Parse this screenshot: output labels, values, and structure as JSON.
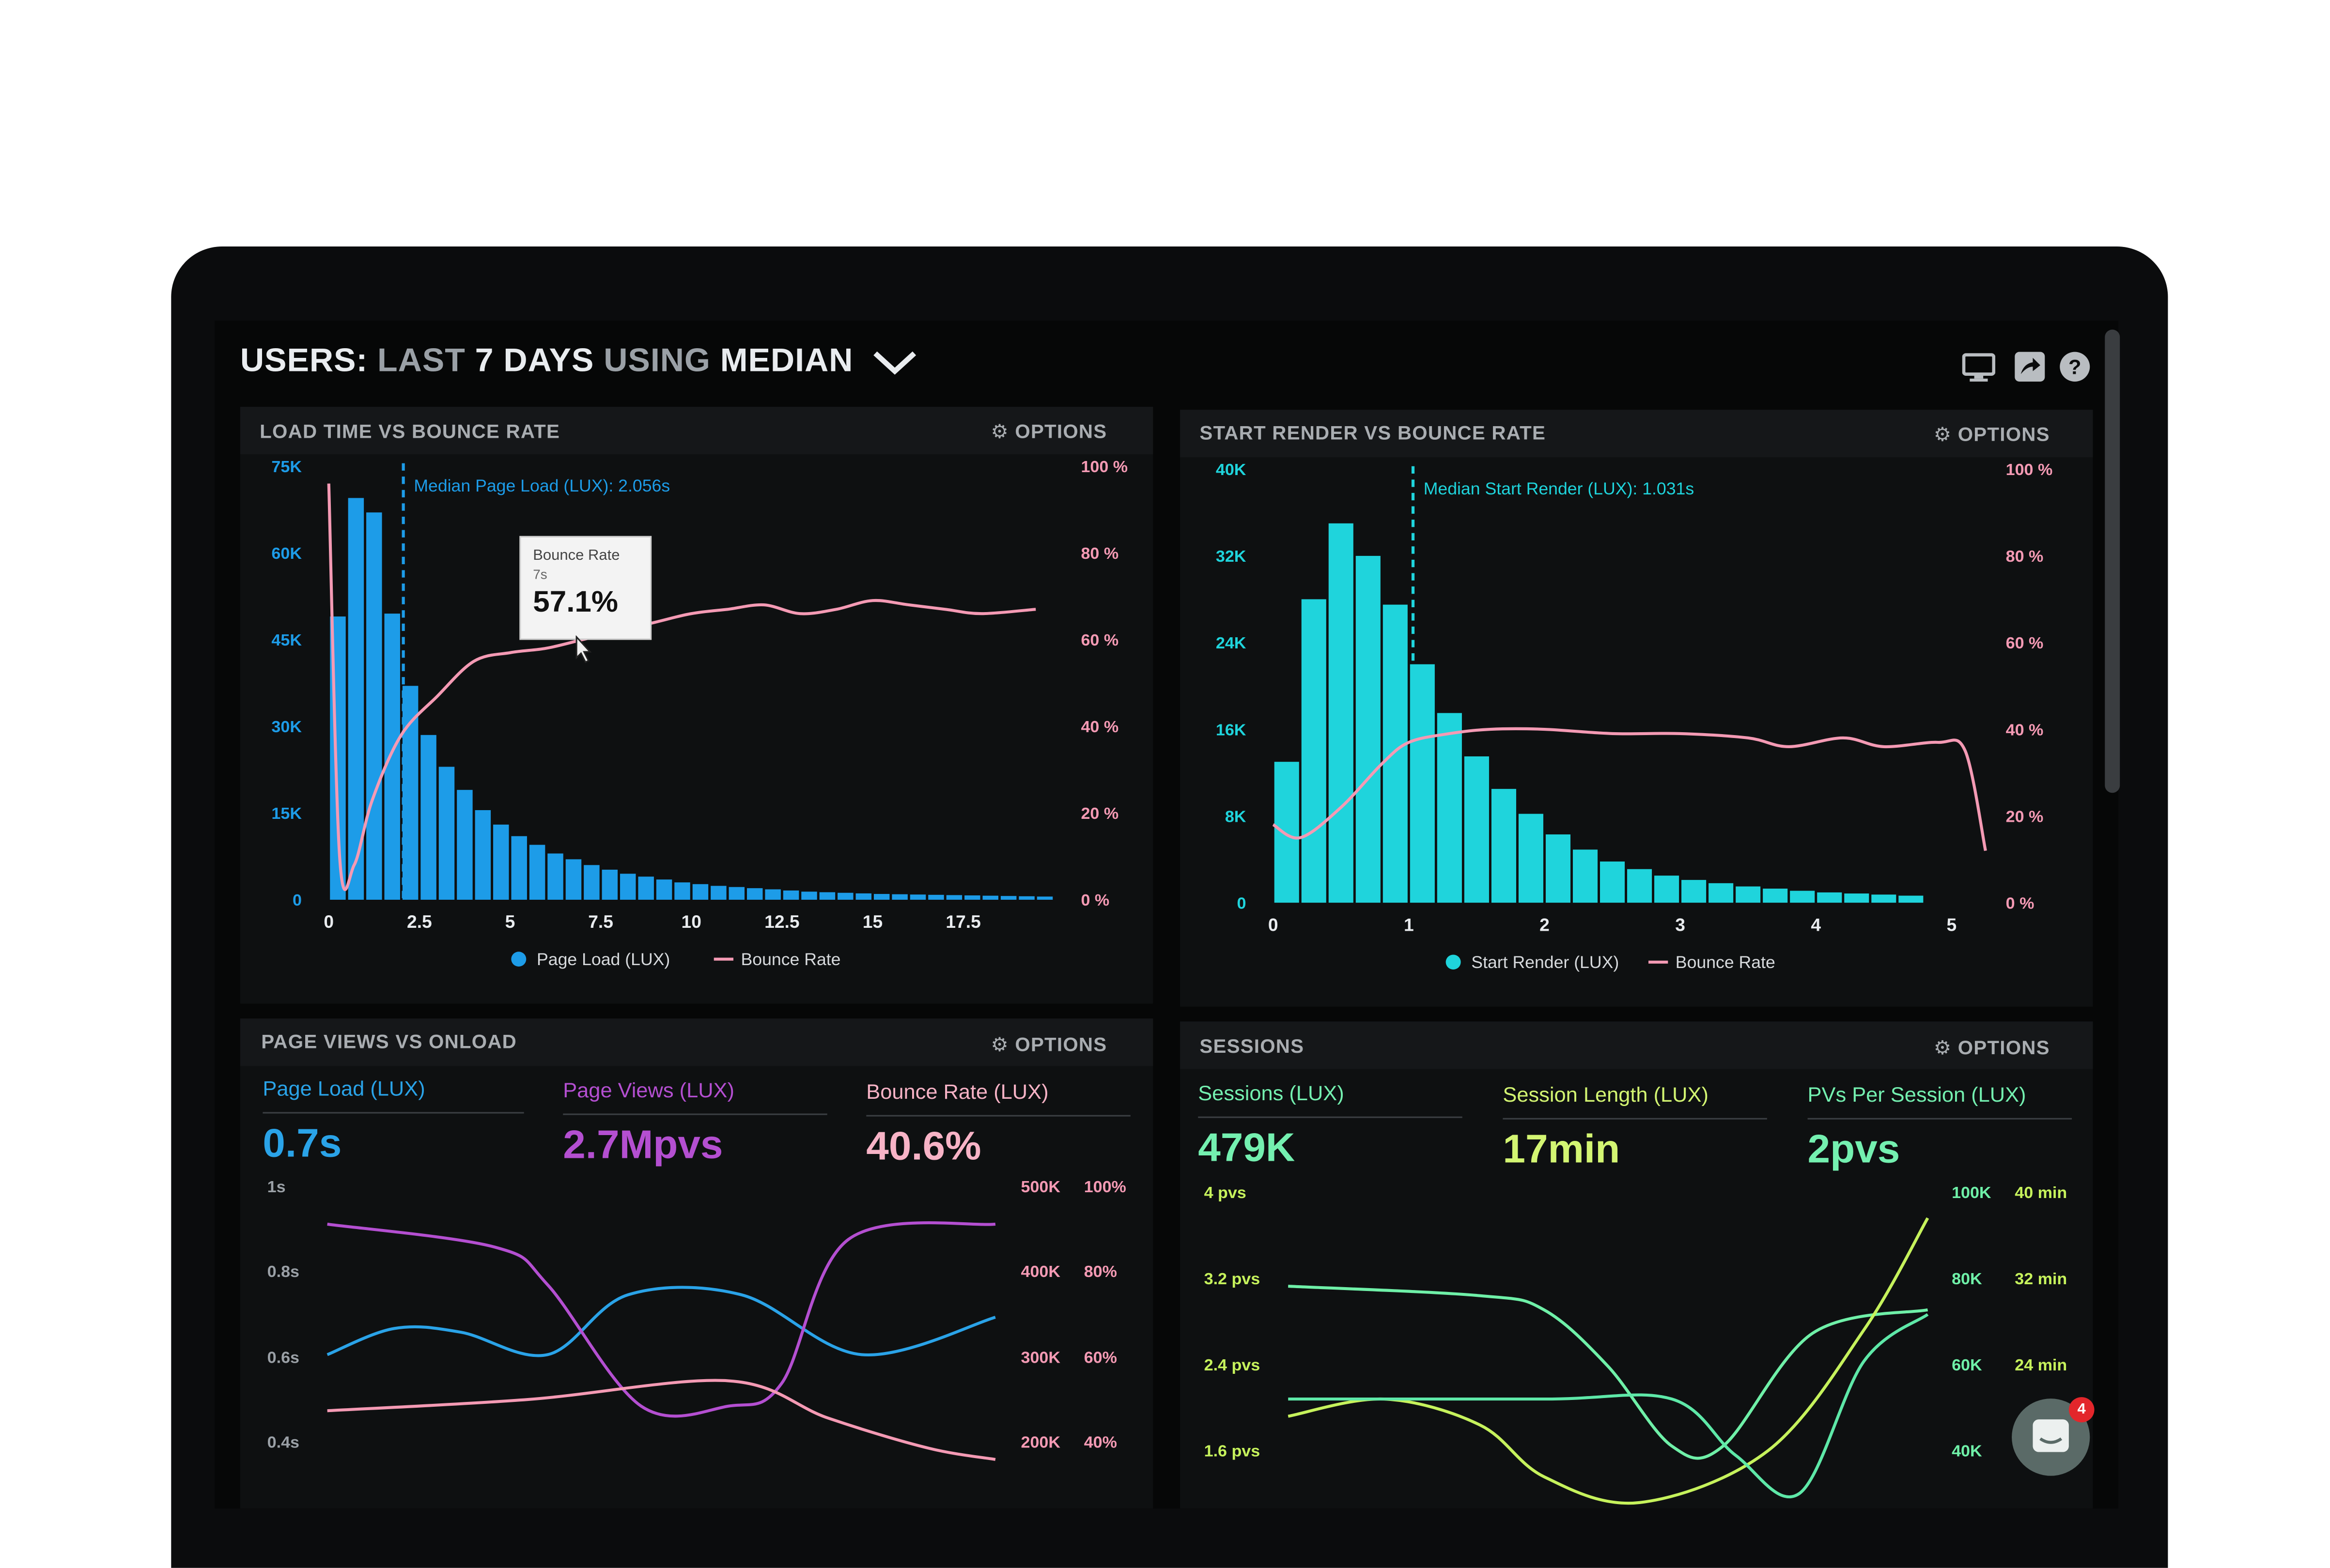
{
  "header": {
    "title_parts": [
      "USERS:",
      "LAST",
      "7 DAYS",
      "USING",
      "MEDIAN"
    ],
    "icons": [
      "monitor-icon",
      "share-icon",
      "help-icon"
    ]
  },
  "colors": {
    "blue": "#1d9ce8",
    "cyan": "#1fd4dc",
    "pink": "#f49ab4",
    "purple": "#b44fd1",
    "green": "#6ff0a8",
    "lime": "#c6f25c",
    "muted": "#a9adb1"
  },
  "panels": {
    "load_time": {
      "title": "LOAD TIME VS BOUNCE RATE",
      "options": "OPTIONS"
    },
    "start_render": {
      "title": "START RENDER VS BOUNCE RATE",
      "options": "OPTIONS"
    },
    "page_views": {
      "title": "PAGE VIEWS VS ONLOAD",
      "options": "OPTIONS"
    },
    "sessions": {
      "title": "SESSIONS",
      "options": "OPTIONS"
    }
  },
  "tooltip": {
    "label": "Bounce Rate",
    "sub": "7s",
    "value": "57.1%"
  },
  "page_views_stats": [
    {
      "label": "Page Load (LUX)",
      "value": "0.7s",
      "color": "#2aa3e8"
    },
    {
      "label": "Page Views (LUX)",
      "value": "2.7Mpvs",
      "color": "#b44fd1"
    },
    {
      "label": "Bounce Rate (LUX)",
      "value": "40.6%",
      "color": "#f7b3c6"
    }
  ],
  "sessions_stats": [
    {
      "label": "Sessions (LUX)",
      "value": "479K",
      "color": "#74f0b0"
    },
    {
      "label": "Session Length (LUX)",
      "value": "17min",
      "color": "#d3f572"
    },
    {
      "label": "PVs Per Session (LUX)",
      "value": "2pvs",
      "color": "#74f0b0"
    }
  ],
  "chat": {
    "badge": "4"
  },
  "chart_data": [
    {
      "type": "bar",
      "name": "load-time-vs-bounce-rate",
      "x_ticks": [
        "0",
        "2.5",
        "5",
        "7.5",
        "10",
        "12.5",
        "15",
        "17.5"
      ],
      "xlim": [
        0,
        20
      ],
      "y_left_ticks": [
        "0",
        "15K",
        "30K",
        "45K",
        "60K",
        "75K"
      ],
      "ylim_left": [
        0,
        75000
      ],
      "y_right_ticks": [
        "0 %",
        "20 %",
        "40 %",
        "60 %",
        "80 %",
        "100 %"
      ],
      "ylim_right": [
        0,
        100
      ],
      "median_label": "Median Page Load (LUX): 2.056s",
      "median_x": 2.056,
      "bin_width": 0.5,
      "series": [
        {
          "name": "Page Load (LUX)",
          "kind": "bar",
          "color": "#1d9ce8",
          "values": [
            49000,
            69500,
            67000,
            49500,
            37000,
            28500,
            23000,
            19000,
            15500,
            13000,
            11000,
            9500,
            8000,
            7000,
            6000,
            5200,
            4500,
            4000,
            3500,
            3000,
            2700,
            2400,
            2200,
            2000,
            1800,
            1600,
            1400,
            1300,
            1200,
            1100,
            1000,
            950,
            900,
            850,
            800,
            750,
            700,
            650,
            600,
            550
          ]
        },
        {
          "name": "Bounce Rate",
          "kind": "line",
          "color": "#f49ab4",
          "points": [
            [
              0,
              96
            ],
            [
              0.3,
              10
            ],
            [
              0.7,
              8
            ],
            [
              1.2,
              23
            ],
            [
              2,
              38
            ],
            [
              3,
              47
            ],
            [
              4,
              55
            ],
            [
              5,
              57
            ],
            [
              6,
              58
            ],
            [
              7,
              60
            ],
            [
              8,
              62
            ],
            [
              9,
              64
            ],
            [
              10,
              66
            ],
            [
              11,
              67
            ],
            [
              12,
              68
            ],
            [
              13,
              66
            ],
            [
              14,
              67
            ],
            [
              15,
              69
            ],
            [
              16,
              68
            ],
            [
              17,
              67
            ],
            [
              18,
              66
            ],
            [
              19.5,
              67
            ]
          ]
        }
      ]
    },
    {
      "type": "bar",
      "name": "start-render-vs-bounce-rate",
      "x_ticks": [
        "0",
        "1",
        "2",
        "3",
        "4",
        "5"
      ],
      "xlim": [
        0,
        5.2
      ],
      "y_left_ticks": [
        "0",
        "8K",
        "16K",
        "24K",
        "32K",
        "40K"
      ],
      "ylim_left": [
        0,
        40000
      ],
      "y_right_ticks": [
        "0 %",
        "20 %",
        "40 %",
        "60 %",
        "80 %",
        "100 %"
      ],
      "ylim_right": [
        0,
        100
      ],
      "median_label": "Median Start Render (LUX): 1.031s",
      "median_x": 1.031,
      "bin_width": 0.2,
      "series": [
        {
          "name": "Start Render (LUX)",
          "kind": "bar",
          "color": "#1fd4dc",
          "values": [
            13000,
            28000,
            35000,
            32000,
            27500,
            22000,
            17500,
            13500,
            10500,
            8200,
            6300,
            4900,
            3800,
            3100,
            2500,
            2100,
            1800,
            1500,
            1300,
            1100,
            950,
            850,
            750,
            650
          ]
        },
        {
          "name": "Bounce Rate",
          "kind": "line",
          "color": "#f49ab4",
          "points": [
            [
              0,
              18
            ],
            [
              0.2,
              15
            ],
            [
              0.5,
              22
            ],
            [
              0.8,
              32
            ],
            [
              1.0,
              37
            ],
            [
              1.3,
              39
            ],
            [
              1.6,
              40
            ],
            [
              2.0,
              40
            ],
            [
              2.5,
              39
            ],
            [
              3.0,
              39
            ],
            [
              3.5,
              38
            ],
            [
              3.8,
              36
            ],
            [
              4.2,
              38
            ],
            [
              4.5,
              36
            ],
            [
              4.9,
              37
            ],
            [
              5.1,
              35
            ],
            [
              5.25,
              12
            ]
          ]
        }
      ]
    },
    {
      "type": "line",
      "name": "page-views-vs-onload",
      "y_left_ticks": [
        "0.4s",
        "0.6s",
        "0.8s",
        "1s"
      ],
      "y_right_ticks_a": [
        "200K",
        "300K",
        "400K",
        "500K"
      ],
      "y_right_ticks_b": [
        "40%",
        "60%",
        "80%",
        "100%"
      ],
      "series": [
        {
          "name": "Page Load (LUX)",
          "color": "#2aa3e8",
          "points": [
            [
              0,
              0.6
            ],
            [
              0.1,
              0.67
            ],
            [
              0.2,
              0.66
            ],
            [
              0.33,
              0.6
            ],
            [
              0.45,
              0.76
            ],
            [
              0.62,
              0.76
            ],
            [
              0.8,
              0.6
            ],
            [
              1,
              0.7
            ]
          ]
        },
        {
          "name": "Page Views (LUX)",
          "color": "#b44fd1",
          "points": [
            [
              0,
              470000
            ],
            [
              0.25,
              440000
            ],
            [
              0.33,
              390000
            ],
            [
              0.47,
              230000
            ],
            [
              0.6,
              230000
            ],
            [
              0.68,
              260000
            ],
            [
              0.78,
              450000
            ],
            [
              1,
              470000
            ]
          ]
        },
        {
          "name": "Bounce Rate (LUX)",
          "color": "#f49ab4",
          "points": [
            [
              0,
              0.4
            ],
            [
              0.3,
              0.43
            ],
            [
              0.6,
              0.48
            ],
            [
              0.75,
              0.38
            ],
            [
              0.9,
              0.3
            ],
            [
              1,
              0.27
            ]
          ]
        }
      ]
    },
    {
      "type": "line",
      "name": "sessions",
      "y_left_ticks": [
        "1.6 pvs",
        "2.4 pvs",
        "3.2 pvs",
        "4 pvs"
      ],
      "y_right_ticks_a": [
        "40K",
        "60K",
        "80K",
        "100K"
      ],
      "y_right_ticks_b": [
        "24 min",
        "32 min",
        "40 min"
      ],
      "series": [
        {
          "name": "Sessions (LUX)",
          "color": "#6ff0a8",
          "points": [
            [
              0,
              3.2
            ],
            [
              0.3,
              3.1
            ],
            [
              0.4,
              2.95
            ],
            [
              0.5,
              2.35
            ],
            [
              0.6,
              1.5
            ],
            [
              0.68,
              1.5
            ],
            [
              0.82,
              2.7
            ],
            [
              1,
              2.95
            ]
          ]
        },
        {
          "name": "Session Length (LUX)",
          "color": "#c6f25c",
          "points": [
            [
              0,
              1.6
            ],
            [
              0.15,
              1.8
            ],
            [
              0.3,
              1.5
            ],
            [
              0.4,
              0.9
            ],
            [
              0.55,
              0.6
            ],
            [
              0.75,
              1.2
            ],
            [
              0.9,
              2.6
            ],
            [
              1,
              3.9
            ]
          ]
        },
        {
          "name": "PVs Per Session (LUX)",
          "color": "#5ee8a8",
          "points": [
            [
              0,
              2.0
            ],
            [
              0.4,
              2.0
            ],
            [
              0.6,
              2.0
            ],
            [
              0.7,
              1.4
            ],
            [
              0.8,
              1.0
            ],
            [
              0.9,
              2.4
            ],
            [
              1,
              2.9
            ]
          ]
        }
      ]
    }
  ]
}
